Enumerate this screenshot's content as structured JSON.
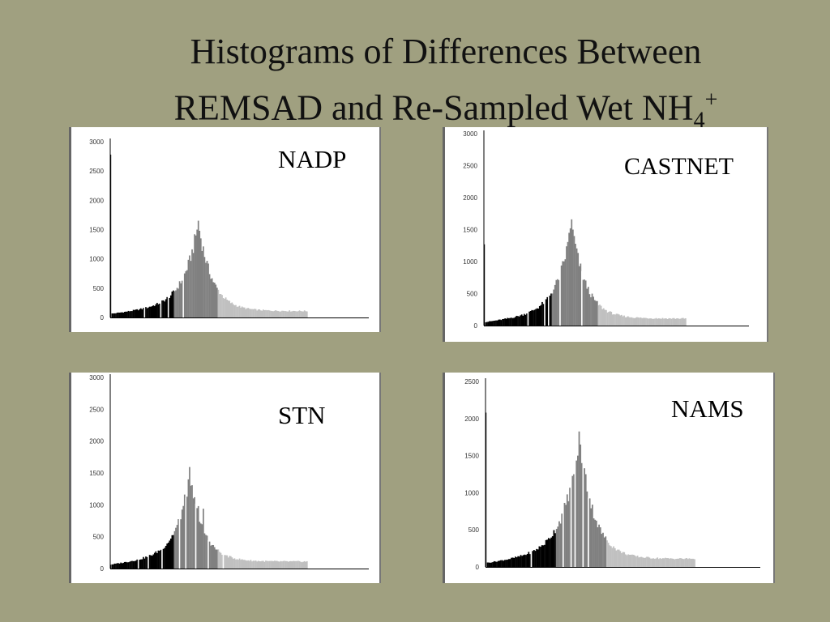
{
  "title": {
    "line1": "Histograms of Differences Between",
    "line2_main": "REMSAD and Re-Sampled Wet NH",
    "line2_sub": "4",
    "line2_sup": "+"
  },
  "colors": {
    "background": "#a0a080",
    "panel": "#ffffff",
    "segment_black": "#000000",
    "segment_dark_gray": "#808080",
    "segment_light_gray": "#c0c0c0"
  },
  "chart_data": [
    {
      "type": "bar",
      "label": "NADP",
      "ylim": [
        0,
        3000
      ],
      "yticks": [
        0,
        500,
        1000,
        1500,
        2000,
        2500,
        3000
      ],
      "yticklabels": [
        "0",
        "500",
        "1000",
        "1500",
        "2000",
        "2500",
        "3000"
      ],
      "bins": 157,
      "first_bin": 2780,
      "peak_bin": 70,
      "peak": 1620,
      "left_base": 60,
      "right_tail": 110,
      "last_bin": 157,
      "segments": [
        [
          0,
          50,
          "black"
        ],
        [
          51,
          85,
          "dark"
        ],
        [
          86,
          157,
          "light"
        ]
      ],
      "spikes": [
        [
          68,
          1400
        ],
        [
          69,
          1500
        ],
        [
          71,
          1480
        ],
        [
          72,
          1350
        ]
      ],
      "gaps": [
        27,
        40,
        46,
        58
      ]
    },
    {
      "type": "bar",
      "label": "CASTNET",
      "ylim": [
        0,
        3000
      ],
      "yticks": [
        0,
        500,
        1000,
        1500,
        2000,
        2500,
        3000
      ],
      "yticklabels": [
        "0",
        "500",
        "1000",
        "1500",
        "2000",
        "2500",
        "3000"
      ],
      "bins": 157,
      "first_bin": 1270,
      "peak_bin": 68,
      "peak": 1590,
      "left_base": 50,
      "right_tail": 110,
      "last_bin": 157,
      "segments": [
        [
          0,
          52,
          "black"
        ],
        [
          53,
          88,
          "dark"
        ],
        [
          89,
          157,
          "light"
        ]
      ],
      "spikes": [
        [
          66,
          1450
        ],
        [
          67,
          1520
        ],
        [
          69,
          1500
        ],
        [
          70,
          1400
        ]
      ],
      "gaps": [
        34,
        47,
        50,
        59,
        76
      ]
    },
    {
      "type": "bar",
      "label": "STN",
      "ylim": [
        0,
        3000
      ],
      "yticks": [
        0,
        500,
        1000,
        1500,
        2000,
        2500,
        3000
      ],
      "yticklabels": [
        "0",
        "500",
        "1000",
        "1500",
        "2000",
        "2500",
        "3000"
      ],
      "bins": 157,
      "first_bin": 60,
      "peak_bin": 63,
      "peak": 1460,
      "left_base": 60,
      "right_tail": 110,
      "last_bin": 157,
      "segments": [
        [
          0,
          50,
          "black"
        ],
        [
          51,
          85,
          "dark"
        ],
        [
          86,
          157,
          "light"
        ]
      ],
      "spikes": [
        [
          62,
          1400
        ],
        [
          64,
          1300
        ],
        [
          70,
          980
        ],
        [
          74,
          940
        ]
      ],
      "gaps": [
        22,
        30,
        41,
        55,
        60,
        68,
        78,
        90
      ]
    },
    {
      "type": "bar",
      "label": "NAMS",
      "ylim": [
        0,
        2500
      ],
      "yticks": [
        0,
        500,
        1000,
        1500,
        2000,
        2500
      ],
      "yticklabels": [
        "0",
        "500",
        "1000",
        "1500",
        "2000",
        "2500"
      ],
      "bins": 157,
      "first_bin": 2080,
      "peak_bin": 70,
      "peak": 1780,
      "left_base": 50,
      "right_tail": 110,
      "last_bin": 157,
      "segments": [
        [
          0,
          52,
          "black"
        ],
        [
          53,
          90,
          "dark"
        ],
        [
          91,
          157,
          "light"
        ]
      ],
      "spikes": [
        [
          69,
          1500
        ],
        [
          71,
          1650
        ],
        [
          72,
          1400
        ],
        [
          75,
          1250
        ]
      ],
      "gaps": [
        34,
        58,
        64,
        67,
        73,
        77
      ]
    }
  ]
}
